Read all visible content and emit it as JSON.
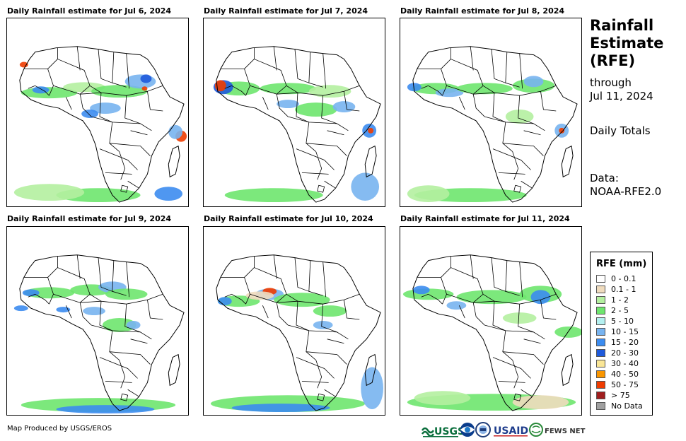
{
  "panels": [
    {
      "title": "Daily Rainfall estimate for Jul 6, 2024"
    },
    {
      "title": "Daily Rainfall estimate for Jul 7, 2024"
    },
    {
      "title": "Daily Rainfall estimate for Jul 8, 2024"
    },
    {
      "title": "Daily Rainfall estimate for Jul 9, 2024"
    },
    {
      "title": "Daily Rainfall estimate for Jul 10, 2024"
    },
    {
      "title": "Daily Rainfall estimate for Jul 11, 2024"
    }
  ],
  "sidebar": {
    "title_line1": "Rainfall",
    "title_line2": "Estimate",
    "title_line3": "(RFE)",
    "through_label": "through",
    "through_date": "Jul 11, 2024",
    "period": "Daily Totals",
    "data_label": "Data:",
    "data_source": "NOAA-RFE2.0"
  },
  "legend": {
    "title": "RFE (mm)",
    "items": [
      {
        "label": "0 - 0.1",
        "color": "#ffffff"
      },
      {
        "label": "0.1 - 1",
        "color": "#f0dcbe"
      },
      {
        "label": "1 - 2",
        "color": "#b4f0a0"
      },
      {
        "label": "2 - 5",
        "color": "#6ee66e"
      },
      {
        "label": "5 - 10",
        "color": "#b4f0f0"
      },
      {
        "label": "10 - 15",
        "color": "#78b4f0"
      },
      {
        "label": "15 - 20",
        "color": "#3c8cf0"
      },
      {
        "label": "20 - 30",
        "color": "#1e5adc"
      },
      {
        "label": "30 - 40",
        "color": "#fae696"
      },
      {
        "label": "40 - 50",
        "color": "#fa9600"
      },
      {
        "label": "50 - 75",
        "color": "#f03c00"
      },
      {
        "label": "> 75",
        "color": "#a01e1e"
      },
      {
        "label": "No Data",
        "color": "#a0a0a0"
      }
    ]
  },
  "footer": {
    "credit": "Map Produced by USGS/EROS",
    "logo_usgs": "USGS",
    "logo_usaid": "USAID",
    "logo_fews": "FEWS NET"
  }
}
